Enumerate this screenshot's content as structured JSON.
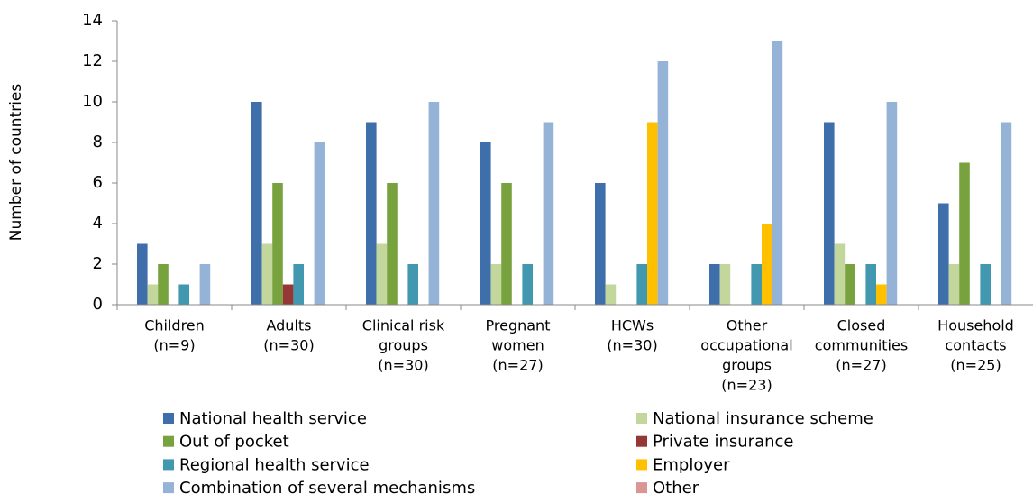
{
  "chart_data": {
    "type": "bar",
    "y_label": "Number of countries",
    "categories": [
      [
        "Children",
        "(n=9)"
      ],
      [
        "Adults",
        "(n=30)"
      ],
      [
        "Clinical risk",
        "groups",
        "(n=30)"
      ],
      [
        "Pregnant",
        "women",
        "(n=27)"
      ],
      [
        "HCWs",
        "(n=30)"
      ],
      [
        "Other",
        "occupational",
        "groups",
        "(n=23)"
      ],
      [
        "Closed",
        "communities",
        "(n=27)"
      ],
      [
        "Household",
        "contacts",
        "(n=25)"
      ]
    ],
    "series": [
      {
        "name": "National health service",
        "color": "#3f6faa",
        "values": [
          3,
          10,
          9,
          8,
          6,
          2,
          9,
          5
        ]
      },
      {
        "name": "National insurance scheme",
        "color": "#c3d69b",
        "values": [
          1,
          3,
          3,
          2,
          1,
          2,
          3,
          2
        ]
      },
      {
        "name": "Out of pocket",
        "color": "#77a23e",
        "values": [
          2,
          6,
          6,
          6,
          0,
          0,
          2,
          7
        ]
      },
      {
        "name": "Private insurance",
        "color": "#953735",
        "values": [
          0,
          1,
          0,
          0,
          0,
          0,
          0,
          0
        ]
      },
      {
        "name": "Regional health service",
        "color": "#4198af",
        "values": [
          1,
          2,
          2,
          2,
          2,
          2,
          2,
          2
        ]
      },
      {
        "name": "Employer",
        "color": "#ffc000",
        "values": [
          0,
          0,
          0,
          0,
          9,
          4,
          1,
          0
        ]
      },
      {
        "name": "Combination of several mechanisms",
        "color": "#95b3d7",
        "values": [
          2,
          8,
          10,
          9,
          12,
          13,
          10,
          9
        ]
      },
      {
        "name": "Other",
        "color": "#d99694",
        "values": [
          0,
          0,
          0,
          0,
          0,
          0,
          0,
          0
        ]
      }
    ],
    "ylim": [
      0,
      14
    ],
    "yticks": [
      0,
      2,
      4,
      6,
      8,
      10,
      12,
      14
    ],
    "grid": false,
    "legend": "bottom"
  }
}
